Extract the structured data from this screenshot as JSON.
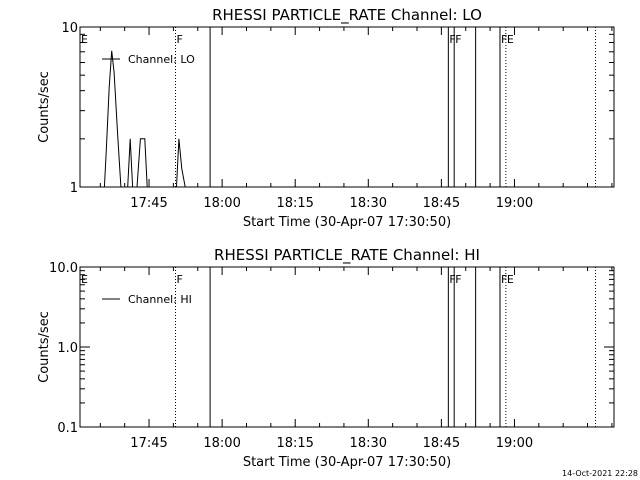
{
  "footer": {
    "timestamp": "14-Oct-2021 22:28"
  },
  "chart_data": [
    {
      "type": "line",
      "title": "RHESSI PARTICLE_RATE Channel: LO",
      "xlabel": "Start Time (30-Apr-07 17:30:50)",
      "ylabel": "Counts/sec",
      "yscale": "log",
      "ylim": [
        1,
        10
      ],
      "y_ticks": [
        "1",
        "10"
      ],
      "xlim_min": [
        0.0,
        109.6
      ],
      "x_ticks": [
        "17:45",
        "18:00",
        "18:15",
        "18:30",
        "18:45",
        "19:00"
      ],
      "x_tick_minutes": [
        14.17,
        29.17,
        44.17,
        59.17,
        74.17,
        89.17
      ],
      "legend": {
        "label": "Channel: LO",
        "placement": "top-left"
      },
      "series": [
        {
          "x_min": [
            0.0,
            5.0,
            5.4,
            6.0,
            6.5,
            7.0,
            7.7,
            8.4,
            9.0,
            9.8,
            10.3,
            10.8,
            11.0,
            11.7,
            12.4,
            13.3,
            13.8,
            14.4,
            19.8,
            20.3,
            20.9,
            21.6,
            22.0
          ],
          "y": [
            1,
            1,
            1.7,
            4.2,
            7.1,
            5.2,
            2.2,
            1,
            1,
            1,
            2.0,
            1,
            1,
            1,
            2.0,
            2.0,
            1,
            1,
            1,
            2.0,
            1.3,
            1,
            1
          ]
        }
      ],
      "event_lines": [
        {
          "x_min": 19.6,
          "style": "dotted",
          "label": "F"
        },
        {
          "x_min": 26.7,
          "style": "solid",
          "label": ""
        },
        {
          "x_min": 75.6,
          "style": "solid",
          "label": "F"
        },
        {
          "x_min": 76.8,
          "style": "solid",
          "label": "F"
        },
        {
          "x_min": 81.2,
          "style": "solid",
          "label": ""
        },
        {
          "x_min": 86.2,
          "style": "solid",
          "label": "F"
        },
        {
          "x_min": 87.4,
          "style": "dotted",
          "label": "E"
        },
        {
          "x_min": 105.8,
          "style": "dotted",
          "label": ""
        }
      ],
      "corner_label": "E"
    },
    {
      "type": "line",
      "title": "RHESSI PARTICLE_RATE Channel: HI",
      "xlabel": "Start Time (30-Apr-07 17:30:50)",
      "ylabel": "Counts/sec",
      "yscale": "log",
      "ylim": [
        0.1,
        10
      ],
      "y_ticks": [
        "0.1",
        "1.0",
        "10.0"
      ],
      "xlim_min": [
        0.0,
        109.6
      ],
      "x_ticks": [
        "17:45",
        "18:00",
        "18:15",
        "18:30",
        "18:45",
        "19:00"
      ],
      "x_tick_minutes": [
        14.17,
        29.17,
        44.17,
        59.17,
        74.17,
        89.17
      ],
      "legend": {
        "label": "Channel: HI",
        "placement": "top-left"
      },
      "series": [
        {
          "x_min": [],
          "y": []
        }
      ],
      "event_lines": [
        {
          "x_min": 19.6,
          "style": "dotted",
          "label": "F"
        },
        {
          "x_min": 26.7,
          "style": "solid",
          "label": ""
        },
        {
          "x_min": 75.6,
          "style": "solid",
          "label": "F"
        },
        {
          "x_min": 76.8,
          "style": "solid",
          "label": "F"
        },
        {
          "x_min": 81.2,
          "style": "solid",
          "label": ""
        },
        {
          "x_min": 86.2,
          "style": "solid",
          "label": "F"
        },
        {
          "x_min": 87.4,
          "style": "dotted",
          "label": "E"
        },
        {
          "x_min": 105.8,
          "style": "dotted",
          "label": ""
        }
      ],
      "corner_label": "E"
    }
  ]
}
